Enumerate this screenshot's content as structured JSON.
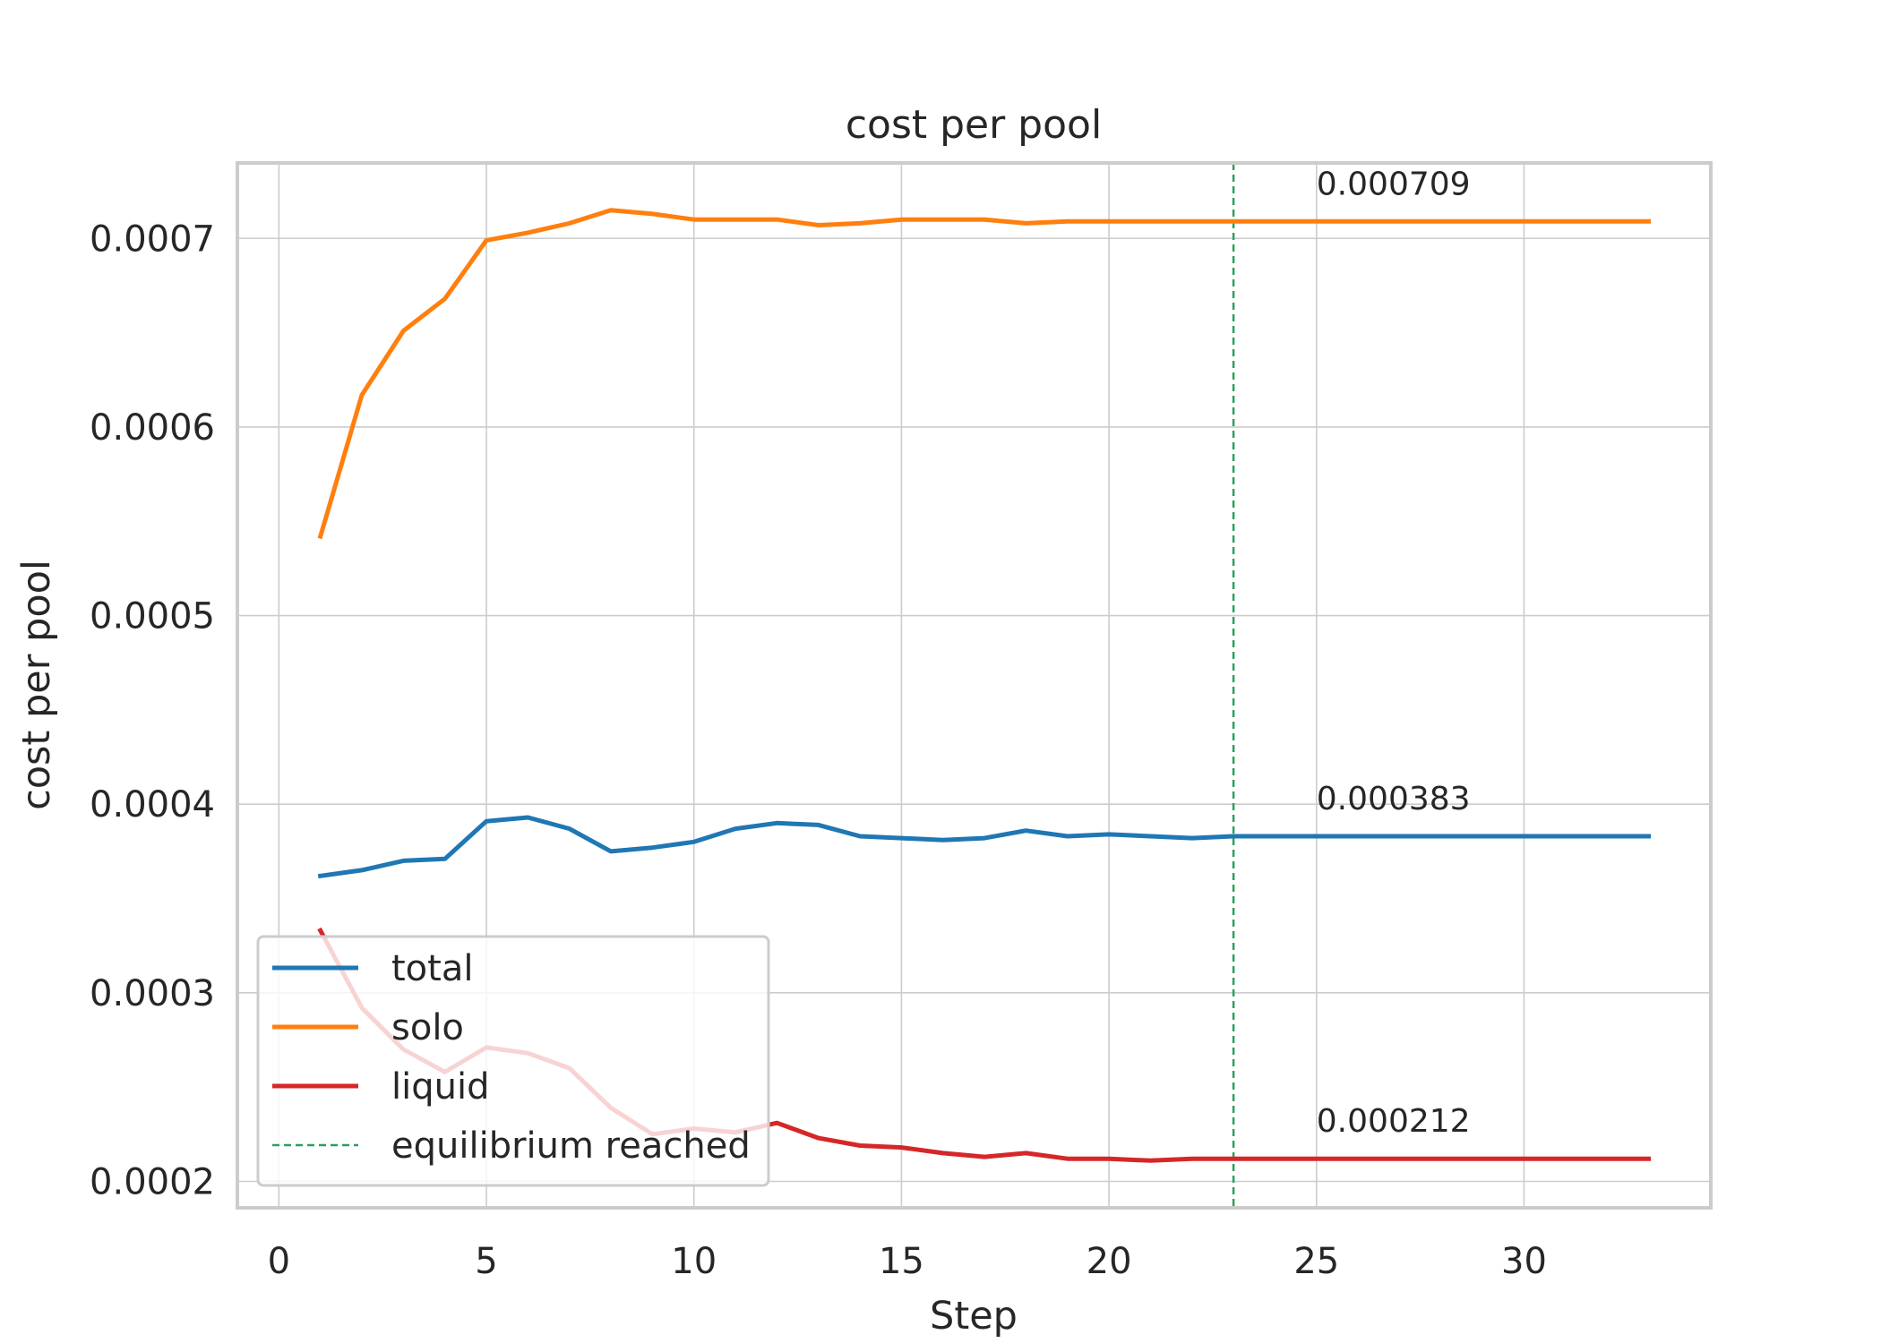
{
  "chart_data": {
    "type": "line",
    "title": "cost per pool",
    "xlabel": "Step",
    "ylabel": "cost per pool",
    "xlim": [
      -1,
      34.5
    ],
    "ylim": [
      0.000186,
      0.00074
    ],
    "xticks": [
      0,
      5,
      10,
      15,
      20,
      25,
      30
    ],
    "xtick_labels": [
      "0",
      "5",
      "10",
      "15",
      "20",
      "25",
      "30"
    ],
    "yticks": [
      0.0002,
      0.0003,
      0.0004,
      0.0005,
      0.0006,
      0.0007
    ],
    "ytick_labels": [
      "0.0002",
      "0.0003",
      "0.0004",
      "0.0005",
      "0.0006",
      "0.0007"
    ],
    "grid": true,
    "legend_position": "lower-left",
    "x": [
      1,
      2,
      3,
      4,
      5,
      6,
      7,
      8,
      9,
      10,
      11,
      12,
      13,
      14,
      15,
      16,
      17,
      18,
      19,
      20,
      21,
      22,
      23,
      24,
      25,
      26,
      27,
      28,
      29,
      30,
      31,
      32,
      33
    ],
    "series": [
      {
        "name": "total",
        "color": "#1f77b4",
        "values": [
          0.000362,
          0.000365,
          0.00037,
          0.000371,
          0.000391,
          0.000393,
          0.000387,
          0.000375,
          0.000377,
          0.00038,
          0.000387,
          0.00039,
          0.000389,
          0.000383,
          0.000382,
          0.000381,
          0.000382,
          0.000386,
          0.000383,
          0.000384,
          0.000383,
          0.000382,
          0.000383,
          0.000383,
          0.000383,
          0.000383,
          0.000383,
          0.000383,
          0.000383,
          0.000383,
          0.000383,
          0.000383,
          0.000383
        ]
      },
      {
        "name": "solo",
        "color": "#ff7f0e",
        "values": [
          0.000542,
          0.000617,
          0.000651,
          0.000668,
          0.000699,
          0.000703,
          0.000708,
          0.000715,
          0.000713,
          0.00071,
          0.00071,
          0.00071,
          0.000707,
          0.000708,
          0.00071,
          0.00071,
          0.00071,
          0.000708,
          0.000709,
          0.000709,
          0.000709,
          0.000709,
          0.000709,
          0.000709,
          0.000709,
          0.000709,
          0.000709,
          0.000709,
          0.000709,
          0.000709,
          0.000709,
          0.000709,
          0.000709
        ]
      },
      {
        "name": "liquid",
        "color": "#d62728",
        "values": [
          0.000333,
          0.000292,
          0.00027,
          0.000258,
          0.000271,
          0.000268,
          0.00026,
          0.000239,
          0.000225,
          0.000228,
          0.000226,
          0.000231,
          0.000223,
          0.000219,
          0.000218,
          0.000215,
          0.000213,
          0.000215,
          0.000212,
          0.000212,
          0.000211,
          0.000212,
          0.000212,
          0.000212,
          0.000212,
          0.000212,
          0.000212,
          0.000212,
          0.000212,
          0.000212,
          0.000212,
          0.000212,
          0.000212
        ]
      }
    ],
    "vline": {
      "x": 23,
      "label": "equilibrium reached",
      "color": "#2ca05a"
    },
    "annotations": [
      {
        "text": "0.000709",
        "x": 25,
        "y": 0.000709,
        "color": "#262626"
      },
      {
        "text": "0.000383",
        "x": 25,
        "y": 0.000383,
        "color": "#262626"
      },
      {
        "text": "0.000212",
        "x": 25,
        "y": 0.000212,
        "color": "#262626"
      }
    ]
  }
}
